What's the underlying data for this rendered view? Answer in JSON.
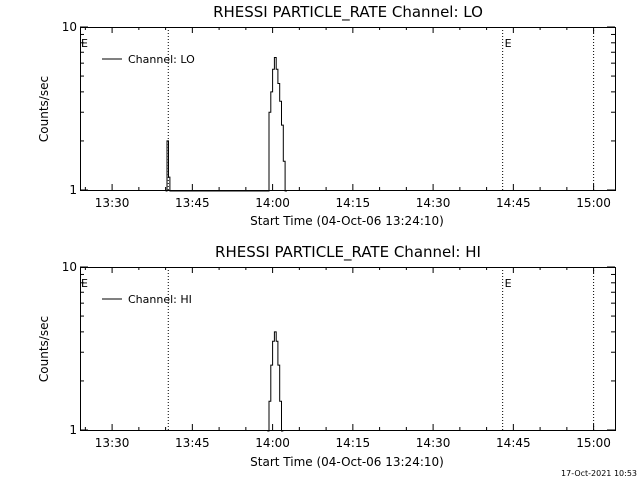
{
  "timestamp": "17-Oct-2021 10:53",
  "chart_data": [
    {
      "type": "line",
      "title": "RHESSI PARTICLE_RATE Channel: LO",
      "xlabel": "Start Time (04-Oct-06 13:24:10)",
      "ylabel": "Counts/sec",
      "yscale": "log",
      "ylim": [
        1,
        10
      ],
      "xlim": [
        "13:24",
        "15:04"
      ],
      "xticks": [
        "13:30",
        "13:45",
        "14:00",
        "14:15",
        "14:30",
        "14:45",
        "15:00"
      ],
      "yticks": [
        "1",
        "10"
      ],
      "grid": false,
      "legend_position": "top-left",
      "series": [
        {
          "name": "Channel: LO",
          "x": [
            "13:40:00",
            "13:40:16",
            "13:40:32",
            "13:40:48",
            "13:41:04",
            "13:41:20",
            "13:59:00",
            "13:59:20",
            "13:59:40",
            "14:00:00",
            "14:00:20",
            "14:00:40",
            "14:01:00",
            "14:01:20",
            "14:01:40",
            "14:02:00",
            "14:02:20",
            "14:02:40"
          ],
          "y": [
            0,
            2,
            1.2,
            0,
            0,
            0,
            0,
            3,
            4,
            5.5,
            6.5,
            5.5,
            4.5,
            3.5,
            2.5,
            1.5,
            0,
            0
          ]
        }
      ],
      "vlines": [
        {
          "x": "13:40:30",
          "label": "",
          "style": "dotted"
        },
        {
          "x": "14:43:00",
          "label": "E",
          "style": "dotted"
        },
        {
          "x": "15:00:00",
          "label": "",
          "style": "dotted"
        }
      ],
      "edge_marker": "E"
    },
    {
      "type": "line",
      "title": "RHESSI PARTICLE_RATE Channel: HI",
      "xlabel": "Start Time (04-Oct-06 13:24:10)",
      "ylabel": "Counts/sec",
      "yscale": "log",
      "ylim": [
        1,
        10
      ],
      "xlim": [
        "13:24",
        "15:04"
      ],
      "xticks": [
        "13:30",
        "13:45",
        "14:00",
        "14:15",
        "14:30",
        "14:45",
        "15:00"
      ],
      "yticks": [
        "1",
        "10"
      ],
      "grid": false,
      "legend_position": "top-left",
      "series": [
        {
          "name": "Channel: HI",
          "x": [
            "13:59:00",
            "13:59:20",
            "13:59:40",
            "14:00:00",
            "14:00:20",
            "14:00:40",
            "14:01:00",
            "14:01:20",
            "14:01:40",
            "14:02:00"
          ],
          "y": [
            0,
            1.5,
            2.5,
            3.5,
            4,
            3.5,
            2.5,
            1.5,
            0,
            0
          ]
        }
      ],
      "vlines": [
        {
          "x": "13:40:30",
          "label": "",
          "style": "dotted"
        },
        {
          "x": "14:43:00",
          "label": "E",
          "style": "dotted"
        },
        {
          "x": "15:00:00",
          "label": "",
          "style": "dotted"
        }
      ],
      "edge_marker": "E"
    }
  ]
}
